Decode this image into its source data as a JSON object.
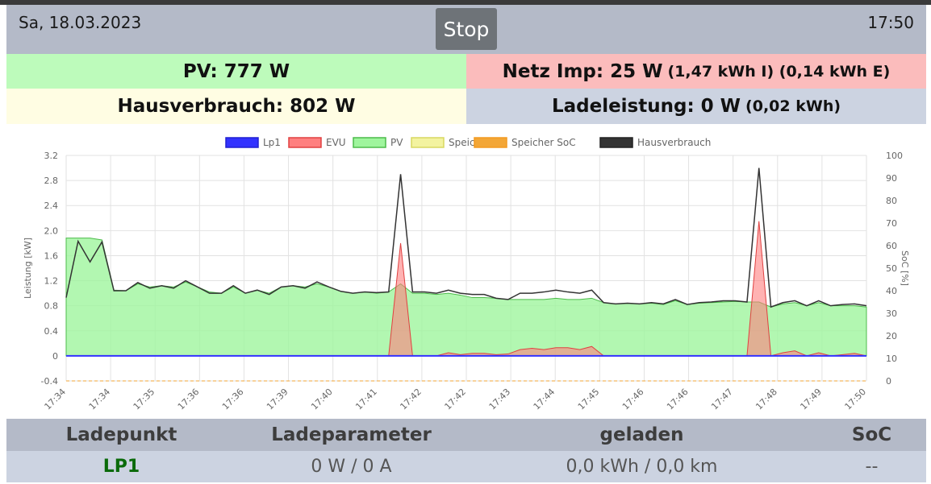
{
  "header": {
    "date": "Sa, 18.03.2023",
    "time": "17:50",
    "stop_label": "Stop"
  },
  "tiles": {
    "pv": {
      "main": "PV: 777 W"
    },
    "netz": {
      "main": "Netz Imp: 25 W",
      "extra": "(1,47 kWh I) (0,14 kWh E)"
    },
    "haus": {
      "main": "Hausverbrauch: 802 W"
    },
    "lade": {
      "main": "Ladeleistung: 0 W",
      "extra": "(0,02 kWh)"
    }
  },
  "colors": {
    "lp1": "#3232ff",
    "evu": "#ff7f7f",
    "pv": "#9ff59d",
    "speicher": "#f3f3a0",
    "speicher_soc": "#f3a636",
    "hausverbrauch": "#333333"
  },
  "table": {
    "headers": [
      "Ladepunkt",
      "Ladeparameter",
      "geladen",
      "SoC"
    ],
    "rows": [
      {
        "name": "LP1",
        "params": "0 W / 0 A",
        "charged": "0,0 kWh / 0,0 km",
        "soc": "--"
      }
    ]
  },
  "chart_data": {
    "type": "line",
    "ylabel": "Leistung [kW]",
    "y2label": "SoC [%]",
    "ylim": [
      -0.4,
      3.2
    ],
    "y2lim": [
      0,
      100
    ],
    "grid": true,
    "legend_position": "top",
    "legend": [
      "Lp1",
      "EVU",
      "PV",
      "Speicher",
      "Speicher SoC",
      "Hausverbrauch"
    ],
    "x_ticks": [
      "17:34",
      "17:34",
      "17:35",
      "17:36",
      "17:36",
      "17:39",
      "17:40",
      "17:41",
      "17:42",
      "17:42",
      "17:43",
      "17:44",
      "17:45",
      "17:46",
      "17:46",
      "17:47",
      "17:48",
      "17:49",
      "17:50"
    ],
    "y_ticks": [
      "-0.4",
      "0",
      "0.4",
      "0.8",
      "1.2",
      "1.6",
      "2.0",
      "2.4",
      "2.8",
      "3.2"
    ],
    "y2_ticks": [
      "0",
      "10",
      "20",
      "30",
      "40",
      "50",
      "60",
      "70",
      "80",
      "90",
      "100"
    ],
    "series": [
      {
        "name": "Hausverbrauch",
        "values": [
          0.93,
          1.83,
          1.5,
          1.82,
          1.04,
          1.04,
          1.17,
          1.08,
          1.12,
          1.08,
          1.2,
          1.1,
          1.0,
          1.0,
          1.12,
          1.0,
          1.05,
          0.98,
          1.1,
          1.12,
          1.08,
          1.18,
          1.1,
          1.03,
          1.0,
          1.02,
          1.01,
          1.02,
          2.9,
          1.02,
          1.02,
          1.0,
          1.05,
          1.0,
          0.98,
          0.98,
          0.92,
          0.9,
          1.0,
          1.0,
          1.02,
          1.05,
          1.02,
          1.0,
          1.05,
          0.85,
          0.83,
          0.84,
          0.83,
          0.85,
          0.83,
          0.9,
          0.82,
          0.85,
          0.86,
          0.88,
          0.88,
          0.86,
          3.0,
          0.78,
          0.85,
          0.88,
          0.8,
          0.88,
          0.8,
          0.82,
          0.83,
          0.8
        ]
      },
      {
        "name": "PV",
        "values": [
          1.88,
          1.88,
          1.88,
          1.85,
          1.05,
          1.04,
          1.15,
          1.1,
          1.12,
          1.1,
          1.18,
          1.1,
          1.02,
          1.0,
          1.1,
          1.0,
          1.05,
          1.0,
          1.1,
          1.12,
          1.1,
          1.15,
          1.1,
          1.03,
          1.0,
          1.02,
          1.0,
          1.02,
          1.15,
          1.0,
          1.0,
          0.98,
          1.0,
          0.97,
          0.93,
          0.93,
          0.92,
          0.9,
          0.9,
          0.9,
          0.9,
          0.92,
          0.9,
          0.9,
          0.92,
          0.85,
          0.83,
          0.84,
          0.83,
          0.84,
          0.82,
          0.88,
          0.82,
          0.84,
          0.85,
          0.86,
          0.87,
          0.86,
          0.86,
          0.78,
          0.83,
          0.85,
          0.8,
          0.85,
          0.8,
          0.8,
          0.8,
          0.78
        ]
      },
      {
        "name": "EVU",
        "values": [
          0,
          0,
          0,
          0,
          0,
          0,
          0,
          0,
          0,
          0,
          0,
          0,
          0,
          0,
          0,
          0,
          0,
          0,
          0,
          0,
          0,
          0,
          0,
          0,
          0,
          0,
          0,
          0,
          1.8,
          0,
          0,
          0,
          0.05,
          0.02,
          0.04,
          0.04,
          0.02,
          0.03,
          0.1,
          0.12,
          0.1,
          0.13,
          0.13,
          0.1,
          0.15,
          0,
          0,
          0,
          0,
          0,
          0,
          0,
          0,
          0,
          0,
          0,
          0,
          0,
          2.15,
          0,
          0.05,
          0.08,
          0,
          0.05,
          0,
          0.02,
          0.04,
          0
        ]
      },
      {
        "name": "Lp1",
        "values": [
          0,
          0,
          0,
          0,
          0,
          0,
          0,
          0,
          0,
          0,
          0,
          0,
          0,
          0,
          0,
          0,
          0,
          0,
          0,
          0,
          0,
          0,
          0,
          0,
          0,
          0,
          0,
          0,
          0,
          0,
          0,
          0,
          0,
          0,
          0,
          0,
          0,
          0,
          0,
          0,
          0,
          0,
          0,
          0,
          0,
          0,
          0,
          0,
          0,
          0,
          0,
          0,
          0,
          0,
          0,
          0,
          0,
          0,
          0,
          0,
          0,
          0,
          0,
          0,
          0,
          0,
          0,
          0
        ]
      },
      {
        "name": "Speicher SoC",
        "values": [
          0,
          0,
          0,
          0,
          0,
          0,
          0,
          0,
          0,
          0,
          0,
          0,
          0,
          0,
          0,
          0,
          0,
          0,
          0,
          0,
          0,
          0,
          0,
          0,
          0,
          0,
          0,
          0,
          0,
          0,
          0,
          0,
          0,
          0,
          0,
          0,
          0,
          0,
          0,
          0,
          0,
          0,
          0,
          0,
          0,
          0,
          0,
          0,
          0,
          0,
          0,
          0,
          0,
          0,
          0,
          0,
          0,
          0,
          0,
          0,
          0,
          0,
          0,
          0,
          0,
          0,
          0,
          0
        ]
      }
    ]
  }
}
